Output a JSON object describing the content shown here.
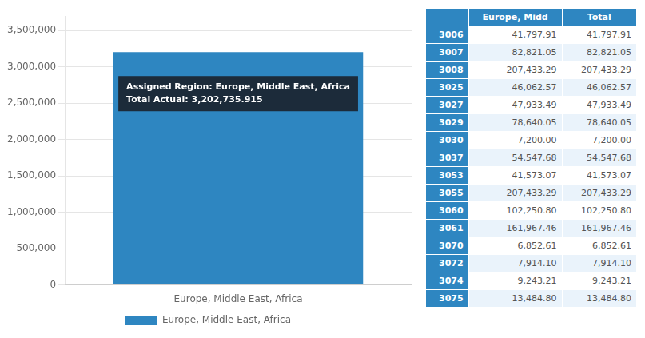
{
  "chart_data": {
    "type": "bar",
    "categories": [
      "Europe, Middle East, Africa"
    ],
    "series": [
      {
        "name": "Europe, Middle East, Africa",
        "color": "#2E86C1",
        "values": [
          3202735.915
        ]
      }
    ],
    "ylim": [
      0,
      3700000
    ],
    "yticks": [
      0,
      {
        "value": 500000,
        "label": "500,000"
      },
      {
        "value": 1000000,
        "label": "1,000,000"
      },
      {
        "value": 1500000,
        "label": "1,500,000"
      },
      {
        "value": 2000000,
        "label": "2,000,000"
      },
      {
        "value": 2500000,
        "label": "2,500,000"
      },
      {
        "value": 3000000,
        "label": "3,000,000"
      },
      {
        "value": 3500000,
        "label": "3,500,000"
      }
    ],
    "grid": true,
    "legend": "bottom",
    "annotations": [
      "Assigned Region: Europe, Middle East, Africa",
      "Total Actual: 3,202,735.915"
    ],
    "table": {
      "header": [
        "Europe, Midd",
        "Total"
      ],
      "rows": [
        [
          "3006",
          "41,797.91",
          "41,797.91"
        ],
        [
          "3007",
          "82,821.05",
          "82,821.05"
        ],
        [
          "3008",
          "207,433.29",
          "207,433.29"
        ],
        [
          "3025",
          "46,062.57",
          "46,062.57"
        ],
        [
          "3027",
          "47,933.49",
          "47,933.49"
        ],
        [
          "3029",
          "78,640.05",
          "78,640.05"
        ],
        [
          "3030",
          "7,200.00",
          "7,200.00"
        ],
        [
          "3037",
          "54,547.68",
          "54,547.68"
        ],
        [
          "3053",
          "41,573.07",
          "41,573.07"
        ],
        [
          "3055",
          "207,433.29",
          "207,433.29"
        ],
        [
          "3060",
          "102,250.80",
          "102,250.80"
        ],
        [
          "3061",
          "161,967.46",
          "161,967.46"
        ],
        [
          "3070",
          "6,852.61",
          "6,852.61"
        ],
        [
          "3072",
          "7,914.10",
          "7,914.10"
        ],
        [
          "3074",
          "9,243.21",
          "9,243.21"
        ],
        [
          "3075",
          "13,484.80",
          "13,484.80"
        ]
      ]
    }
  }
}
